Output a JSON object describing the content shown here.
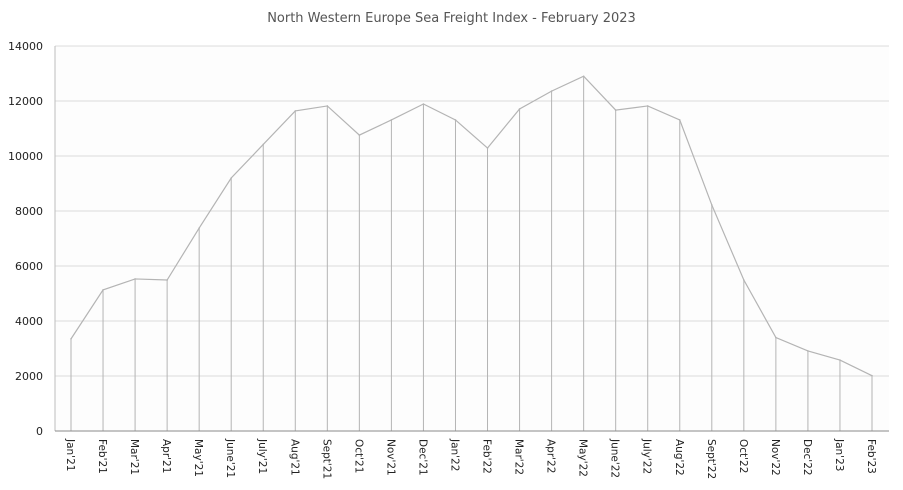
{
  "chart_data": {
    "type": "line",
    "title": "North Western Europe Sea Freight Index - February 2023",
    "xlabel": "",
    "ylabel": "",
    "ylim": [
      0,
      14000
    ],
    "yticks": [
      0,
      2000,
      4000,
      6000,
      8000,
      10000,
      12000,
      14000
    ],
    "grid": true,
    "drop_lines": true,
    "line_color": "#b4b4b4",
    "categories": [
      "Jan'21",
      "Feb'21",
      "Mar'21",
      "Apr'21",
      "May'21",
      "June'21",
      "July'21",
      "Aug'21",
      "Sept'21",
      "Oct'21",
      "Nov'21",
      "Dec'21",
      "Jan'22",
      "Feb'22",
      "Mar'22",
      "Apr'22",
      "May'22",
      "June'22",
      "July'22",
      "Aug'22",
      "Sept'22",
      "Oct'22",
      "Nov'22",
      "Dec'22",
      "Jan'23",
      "Feb'23"
    ],
    "values": [
      3350,
      5130,
      5530,
      5490,
      7380,
      9200,
      10420,
      11640,
      11820,
      10760,
      11310,
      11890,
      11310,
      10290,
      11710,
      12360,
      12900,
      11670,
      11820,
      11310,
      8220,
      5490,
      3400,
      2910,
      2580,
      2010
    ]
  }
}
